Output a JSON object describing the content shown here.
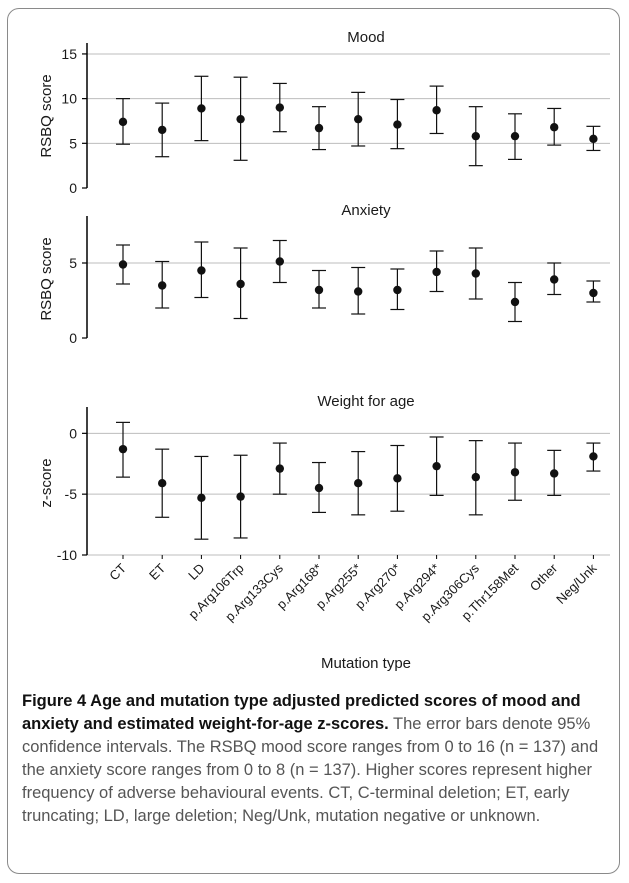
{
  "chart_data": {
    "type": "scatter",
    "categories": [
      "CT",
      "ET",
      "LD",
      "p.Arg106Trp",
      "p.Arg133Cys",
      "p.Arg168*",
      "p.Arg255*",
      "p.Arg270*",
      "p.Arg294*",
      "p.Arg306Cys",
      "p.Thr158Met",
      "Other",
      "Neg/Unk"
    ],
    "xlabel": "Mutation type",
    "panels": [
      {
        "title": "Mood",
        "ylabel": "RSBQ score",
        "ylim": [
          0,
          16
        ],
        "yticks": [
          0,
          5,
          10,
          15
        ],
        "grid": true,
        "estimate": [
          7.4,
          6.5,
          8.9,
          7.7,
          9.0,
          6.7,
          7.7,
          7.1,
          8.7,
          5.8,
          5.8,
          6.8,
          5.5
        ],
        "lower": [
          4.9,
          3.5,
          5.3,
          3.1,
          6.3,
          4.3,
          4.7,
          4.4,
          6.1,
          2.5,
          3.2,
          4.8,
          4.2
        ],
        "upper": [
          10.0,
          9.5,
          12.5,
          12.4,
          11.7,
          9.1,
          10.7,
          9.9,
          11.4,
          9.1,
          8.3,
          8.9,
          6.9
        ]
      },
      {
        "title": "Anxiety",
        "ylabel": "RSBQ score",
        "ylim": [
          0,
          8
        ],
        "yticks": [
          0,
          5
        ],
        "grid": true,
        "estimate": [
          4.9,
          3.5,
          4.5,
          3.6,
          5.1,
          3.2,
          3.1,
          3.2,
          4.4,
          4.3,
          2.4,
          3.9,
          3.0
        ],
        "lower": [
          3.6,
          2.0,
          2.7,
          1.3,
          3.7,
          2.0,
          1.6,
          1.9,
          3.1,
          2.6,
          1.1,
          2.9,
          2.4
        ],
        "upper": [
          6.2,
          5.1,
          6.4,
          6.0,
          6.5,
          4.5,
          4.7,
          4.6,
          5.8,
          6.0,
          3.7,
          5.0,
          3.8
        ]
      },
      {
        "title": "Weight for age",
        "ylabel": "z-score",
        "ylim": [
          -10,
          2
        ],
        "yticks": [
          -10,
          -5,
          0
        ],
        "grid": true,
        "estimate": [
          -1.3,
          -4.1,
          -5.3,
          -5.2,
          -2.9,
          -4.5,
          -4.1,
          -3.7,
          -2.7,
          -3.6,
          -3.2,
          -3.3,
          -1.9
        ],
        "lower": [
          -3.6,
          -6.9,
          -8.7,
          -8.6,
          -5.0,
          -6.5,
          -6.7,
          -6.4,
          -5.1,
          -6.7,
          -5.5,
          -5.1,
          -3.1
        ],
        "upper": [
          0.9,
          -1.3,
          -1.9,
          -1.8,
          -0.8,
          -2.4,
          -1.5,
          -1.0,
          -0.3,
          -0.6,
          -0.8,
          -1.4,
          -0.8
        ]
      }
    ]
  },
  "caption": {
    "title": "Figure 4 Age and mutation type adjusted predicted scores of mood and anxiety and estimated weight-for-age z-scores.",
    "text": " The error bars denote 95% confidence intervals. The RSBQ mood score ranges from 0 to 16 (n = 137) and the anxiety score ranges from 0 to 8 (n = 137). Higher scores represent higher frequency of adverse behavioural events. CT, C-terminal deletion; ET, early truncating; LD, large deletion; Neg/Unk, mutation negative or unknown."
  },
  "colors": {
    "marker": "#111111",
    "grid": "#bdbdbd",
    "axis": "#000000",
    "text": "#1a1a1a"
  }
}
